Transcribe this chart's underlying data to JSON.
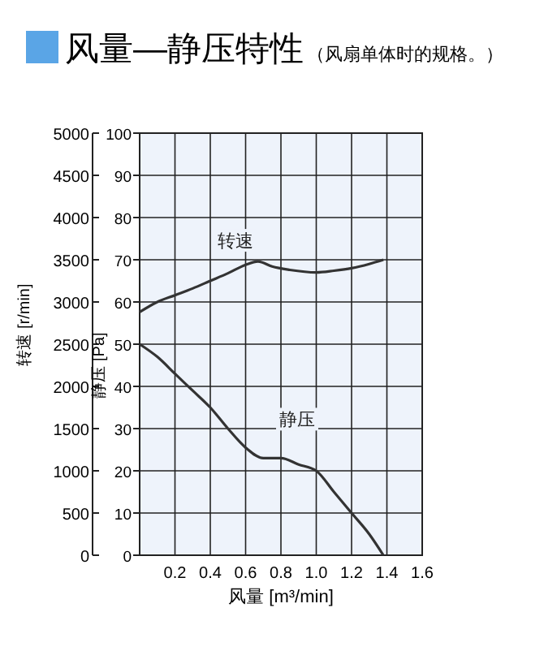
{
  "chart_data": {
    "type": "line",
    "title": "风量—静压特性",
    "subtitle": "（风扇单体时的规格。）",
    "xlabel": "风量 [m³/min]",
    "ylabel": "静压 [Pa]",
    "y2label": "转速 [r/min]",
    "xlim": [
      0,
      1.6
    ],
    "xticks": [
      0.2,
      0.4,
      0.6,
      0.8,
      {
        "value": 1.0,
        "label": "1.0"
      },
      1.2,
      1.4,
      1.6
    ],
    "ylim": [
      0,
      100
    ],
    "yticks": [
      0,
      10,
      20,
      30,
      40,
      50,
      60,
      70,
      80,
      90,
      100
    ],
    "y2lim": [
      0,
      5000
    ],
    "y2ticks": [
      0,
      500,
      1000,
      1500,
      2000,
      2500,
      3000,
      3500,
      4000,
      4500,
      5000
    ],
    "grid": true,
    "marker": "none",
    "line_style": "solid",
    "series": [
      {
        "name": "转速",
        "color": "#333333",
        "axis": "y2",
        "x": [
          0,
          0.1,
          0.2,
          0.3,
          0.4,
          0.5,
          0.6,
          0.67,
          0.75,
          0.85,
          1.0,
          1.1,
          1.2,
          1.3,
          1.38
        ],
        "values": [
          2880,
          3000,
          3080,
          3160,
          3250,
          3340,
          3440,
          3480,
          3420,
          3380,
          3350,
          3370,
          3400,
          3450,
          3500
        ]
      },
      {
        "name": "静压",
        "color": "#333333",
        "x": [
          0,
          0.1,
          0.2,
          0.3,
          0.4,
          0.5,
          0.6,
          0.7,
          0.8,
          0.9,
          1.0,
          1.1,
          1.2,
          1.3,
          1.38
        ],
        "values": [
          50,
          47,
          43,
          39,
          35,
          30,
          25.5,
          23,
          23,
          21.5,
          20,
          15,
          10,
          5,
          0
        ]
      }
    ]
  }
}
